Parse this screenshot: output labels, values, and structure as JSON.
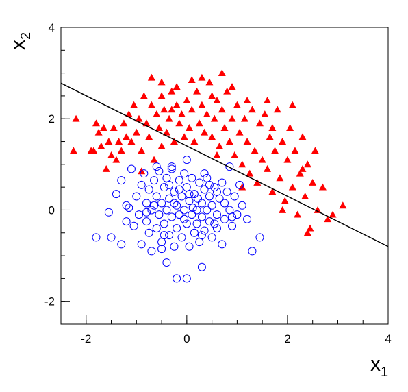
{
  "chart_data": {
    "type": "scatter",
    "title": "",
    "xlabel": "x",
    "xlabel_sub": "1",
    "ylabel": "x",
    "ylabel_sub": "2",
    "xlim": [
      -2.5,
      4
    ],
    "ylim": [
      -2.5,
      4
    ],
    "x_ticks": [
      -2,
      0,
      2,
      4
    ],
    "x_tick_labels": [
      "-2",
      "0",
      "2",
      "4"
    ],
    "y_ticks": [
      -2,
      0,
      2,
      4
    ],
    "y_tick_labels": [
      "-2",
      "0",
      "2",
      "4"
    ],
    "grid": false,
    "legend": "none",
    "boundary_line": {
      "x": [
        -2.5,
        4
      ],
      "y": [
        2.78,
        -0.8
      ],
      "color": "#000000"
    },
    "series": [
      {
        "marker": "triangle",
        "color": "#ff0000",
        "points": [
          [
            -2.2,
            2.0
          ],
          [
            -2.25,
            1.3
          ],
          [
            -1.9,
            1.3
          ],
          [
            -1.85,
            1.3
          ],
          [
            -1.8,
            1.9
          ],
          [
            -1.75,
            1.7
          ],
          [
            -1.7,
            1.4
          ],
          [
            -1.65,
            1.8
          ],
          [
            -1.55,
            1.5
          ],
          [
            -1.5,
            1.2
          ],
          [
            -1.45,
            1.8
          ],
          [
            -1.4,
            1.1
          ],
          [
            -1.35,
            1.5
          ],
          [
            -1.3,
            1.3
          ],
          [
            -1.25,
            1.9
          ],
          [
            -1.2,
            1.6
          ],
          [
            -1.15,
            2.1
          ],
          [
            -1.1,
            1.5
          ],
          [
            -1.05,
            2.3
          ],
          [
            -1.0,
            1.7
          ],
          [
            -0.95,
            2.0
          ],
          [
            -0.9,
            1.3
          ],
          [
            -0.85,
            2.5
          ],
          [
            -0.8,
            1.9
          ],
          [
            -0.75,
            1.6
          ],
          [
            -0.7,
            2.3
          ],
          [
            -0.65,
            1.1
          ],
          [
            -0.6,
            2.1
          ],
          [
            -0.55,
            1.8
          ],
          [
            -0.5,
            2.5
          ],
          [
            -0.5,
            1.4
          ],
          [
            -0.45,
            2.2
          ],
          [
            -0.4,
            1.7
          ],
          [
            -0.35,
            2.0
          ],
          [
            -0.3,
            2.6
          ],
          [
            -0.25,
            1.5
          ],
          [
            -0.2,
            2.3
          ],
          [
            -0.15,
            1.9
          ],
          [
            -0.1,
            2.1
          ],
          [
            -0.05,
            1.6
          ],
          [
            0.0,
            2.4
          ],
          [
            0.05,
            1.8
          ],
          [
            0.1,
            2.2
          ],
          [
            0.15,
            1.5
          ],
          [
            0.2,
            2.6
          ],
          [
            0.25,
            1.9
          ],
          [
            0.3,
            2.3
          ],
          [
            0.35,
            1.7
          ],
          [
            0.4,
            2.1
          ],
          [
            0.45,
            2.8
          ],
          [
            0.5,
            1.6
          ],
          [
            0.55,
            2.0
          ],
          [
            0.6,
            2.4
          ],
          [
            0.65,
            1.4
          ],
          [
            0.7,
            2.2
          ],
          [
            0.75,
            1.8
          ],
          [
            0.8,
            2.6
          ],
          [
            0.85,
            1.5
          ],
          [
            0.9,
            2.0
          ],
          [
            0.95,
            1.2
          ],
          [
            1.0,
            2.3
          ],
          [
            1.05,
            1.7
          ],
          [
            1.1,
            1.0
          ],
          [
            1.15,
            2.0
          ],
          [
            1.2,
            1.5
          ],
          [
            1.25,
            0.8
          ],
          [
            1.3,
            2.2
          ],
          [
            1.35,
            1.3
          ],
          [
            1.4,
            0.6
          ],
          [
            1.45,
            1.9
          ],
          [
            1.5,
            1.1
          ],
          [
            1.55,
            2.1
          ],
          [
            1.6,
            0.9
          ],
          [
            1.65,
            1.6
          ],
          [
            1.7,
            0.4
          ],
          [
            1.75,
            1.3
          ],
          [
            1.8,
            2.2
          ],
          [
            1.85,
            0.7
          ],
          [
            1.9,
            1.5
          ],
          [
            1.95,
            0.2
          ],
          [
            2.0,
            1.1
          ],
          [
            2.05,
            1.8
          ],
          [
            2.1,
            0.5
          ],
          [
            2.15,
            1.3
          ],
          [
            2.2,
            -0.1
          ],
          [
            2.25,
            0.8
          ],
          [
            2.3,
            1.6
          ],
          [
            2.35,
            0.3
          ],
          [
            2.4,
            1.0
          ],
          [
            2.45,
            -0.4
          ],
          [
            2.5,
            0.6
          ],
          [
            2.55,
            1.3
          ],
          [
            2.6,
            0.0
          ],
          [
            2.7,
            0.5
          ],
          [
            2.8,
            -0.2
          ],
          [
            2.9,
            -0.1
          ],
          [
            3.1,
            0.1
          ],
          [
            -0.7,
            2.9
          ],
          [
            -0.2,
            2.7
          ],
          [
            0.3,
            2.9
          ],
          [
            0.9,
            2.7
          ],
          [
            0.5,
            2.5
          ],
          [
            1.2,
            2.4
          ],
          [
            1.6,
            2.4
          ],
          [
            2.1,
            2.3
          ],
          [
            -0.5,
            2.8
          ],
          [
            0.1,
            2.85
          ],
          [
            0.7,
            3.0
          ],
          [
            -0.3,
            2.2
          ],
          [
            0.6,
            1.2
          ],
          [
            1.1,
            0.5
          ],
          [
            1.7,
            1.8
          ],
          [
            2.3,
            0.9
          ],
          [
            -1.6,
            0.9
          ],
          [
            -0.9,
            0.85
          ],
          [
            2.4,
            -0.5
          ],
          [
            1.9,
            -0.0
          ]
        ]
      },
      {
        "marker": "open-circle",
        "color": "#0000ff",
        "points": [
          [
            -1.8,
            -0.6
          ],
          [
            -1.5,
            -0.6
          ],
          [
            -1.55,
            -0.05
          ],
          [
            -1.4,
            0.35
          ],
          [
            -1.3,
            0.65
          ],
          [
            -1.3,
            -0.75
          ],
          [
            -1.2,
            0.1
          ],
          [
            -1.2,
            -0.25
          ],
          [
            -1.15,
            0.05
          ],
          [
            -1.1,
            0.9
          ],
          [
            -1.05,
            -0.35
          ],
          [
            -1.0,
            0.3
          ],
          [
            -0.95,
            -0.1
          ],
          [
            -0.9,
            0.55
          ],
          [
            -0.9,
            -0.75
          ],
          [
            -0.85,
            0.8
          ],
          [
            -0.8,
            0.15
          ],
          [
            -0.8,
            -0.25
          ],
          [
            -0.75,
            -0.5
          ],
          [
            -0.75,
            0.45
          ],
          [
            -0.7,
            -0.9
          ],
          [
            -0.7,
            0.0
          ],
          [
            -0.65,
            0.65
          ],
          [
            -0.6,
            -0.4
          ],
          [
            -0.6,
            0.3
          ],
          [
            -0.55,
            -0.1
          ],
          [
            -0.55,
            0.85
          ],
          [
            -0.5,
            -0.7
          ],
          [
            -0.5,
            0.15
          ],
          [
            -0.45,
            0.5
          ],
          [
            -0.45,
            -0.3
          ],
          [
            -0.4,
            0.0
          ],
          [
            -0.4,
            0.7
          ],
          [
            -0.35,
            -0.55
          ],
          [
            -0.35,
            0.25
          ],
          [
            -0.3,
            -0.15
          ],
          [
            -0.3,
            0.9
          ],
          [
            -0.25,
            0.4
          ],
          [
            -0.25,
            -0.8
          ],
          [
            -0.2,
            0.1
          ],
          [
            -0.2,
            -0.4
          ],
          [
            -0.15,
            0.65
          ],
          [
            -0.15,
            -0.1
          ],
          [
            -0.1,
            0.3
          ],
          [
            -0.1,
            -0.6
          ],
          [
            -0.05,
            0.0
          ],
          [
            -0.05,
            0.8
          ],
          [
            0.0,
            -0.3
          ],
          [
            0.0,
            0.5
          ],
          [
            0.05,
            -0.8
          ],
          [
            0.05,
            0.2
          ],
          [
            0.1,
            -0.1
          ],
          [
            0.1,
            0.7
          ],
          [
            0.15,
            -0.5
          ],
          [
            0.15,
            0.35
          ],
          [
            0.2,
            0.0
          ],
          [
            0.2,
            -0.3
          ],
          [
            0.25,
            0.6
          ],
          [
            0.25,
            -0.7
          ],
          [
            0.3,
            0.15
          ],
          [
            0.3,
            -0.15
          ],
          [
            0.35,
            0.45
          ],
          [
            0.35,
            -0.45
          ],
          [
            0.4,
            0.0
          ],
          [
            0.4,
            0.7
          ],
          [
            0.45,
            -0.25
          ],
          [
            0.45,
            0.3
          ],
          [
            0.5,
            -0.6
          ],
          [
            0.5,
            0.1
          ],
          [
            0.55,
            0.5
          ],
          [
            0.6,
            -0.1
          ],
          [
            0.6,
            -0.4
          ],
          [
            0.65,
            0.25
          ],
          [
            0.7,
            -0.75
          ],
          [
            0.7,
            0.6
          ],
          [
            0.75,
            -0.2
          ],
          [
            0.8,
            0.4
          ],
          [
            0.85,
            0.0
          ],
          [
            0.9,
            -0.35
          ],
          [
            0.95,
            0.3
          ],
          [
            1.0,
            -0.1
          ],
          [
            1.05,
            0.55
          ],
          [
            1.1,
            0.1
          ],
          [
            1.2,
            -0.2
          ],
          [
            1.3,
            -0.9
          ],
          [
            1.45,
            -0.6
          ],
          [
            -0.4,
            -1.15
          ],
          [
            -0.2,
            -1.5
          ],
          [
            0.0,
            -1.5
          ],
          [
            0.3,
            -1.25
          ],
          [
            -0.5,
            -0.85
          ],
          [
            -0.6,
            0.95
          ],
          [
            0.85,
            0.95
          ],
          [
            0.0,
            1.1
          ],
          [
            -0.3,
            0.95
          ],
          [
            0.35,
            0.8
          ],
          [
            -0.15,
            0.45
          ],
          [
            -0.25,
            0.15
          ],
          [
            0.05,
            0.35
          ],
          [
            0.12,
            0.05
          ],
          [
            -0.05,
            -0.2
          ],
          [
            0.22,
            0.25
          ],
          [
            -0.35,
            0.55
          ],
          [
            0.45,
            0.55
          ],
          [
            0.3,
            -0.55
          ],
          [
            -0.45,
            -0.55
          ],
          [
            0.55,
            -0.3
          ],
          [
            0.6,
            0.4
          ],
          [
            -0.65,
            0.1
          ],
          [
            0.75,
            0.15
          ],
          [
            -0.8,
            -0.05
          ],
          [
            0.9,
            -0.15
          ]
        ]
      }
    ]
  }
}
